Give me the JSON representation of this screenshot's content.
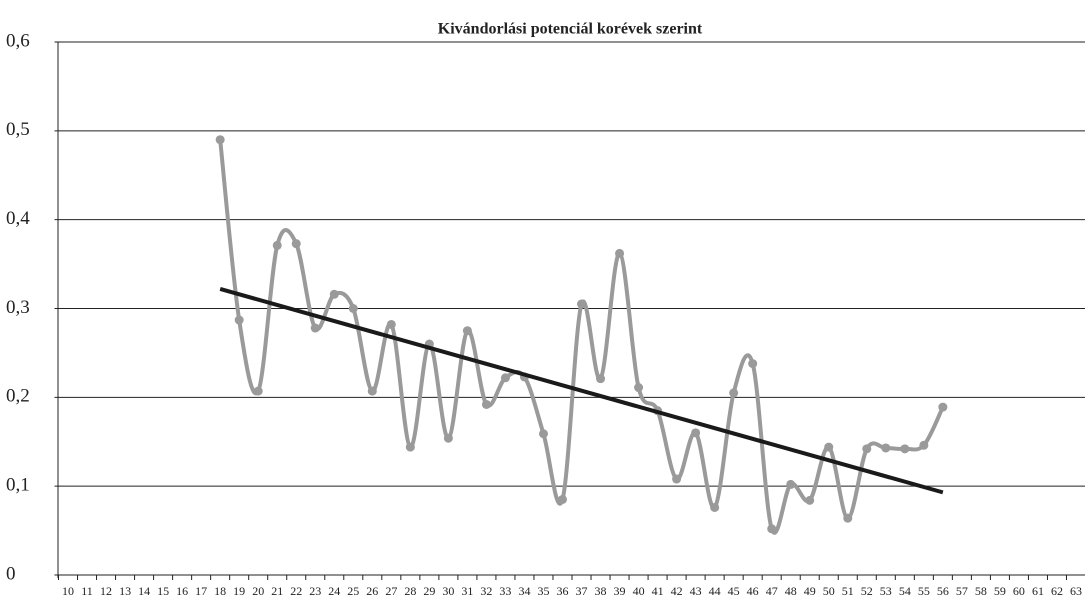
{
  "chart_data": {
    "type": "line",
    "title": "Kivándorlási potenciál korévek szerint",
    "xlim": [
      9.5,
      63.5
    ],
    "xticks": [
      10,
      11,
      12,
      13,
      14,
      15,
      16,
      17,
      18,
      19,
      20,
      21,
      22,
      23,
      24,
      25,
      26,
      27,
      28,
      29,
      30,
      31,
      32,
      33,
      34,
      35,
      36,
      37,
      38,
      39,
      40,
      41,
      42,
      43,
      44,
      45,
      46,
      47,
      48,
      49,
      50,
      51,
      52,
      53,
      54,
      55,
      56,
      57,
      58,
      59,
      60,
      61,
      62,
      63
    ],
    "ylim": [
      0,
      0.6
    ],
    "yticks": [
      0,
      {
        "value": 0.1,
        "label": "0,1"
      },
      {
        "value": 0.2,
        "label": "0,2"
      },
      {
        "value": 0.3,
        "label": "0,3"
      },
      {
        "value": 0.4,
        "label": "0,4"
      },
      {
        "value": 0.5,
        "label": "0,5"
      },
      {
        "value": 0.6,
        "label": "0,6"
      }
    ],
    "grid": true,
    "series": [
      {
        "color": "#9a9a9a",
        "x": [
          18,
          19,
          20,
          21,
          22,
          23,
          24,
          25,
          26,
          27,
          28,
          29,
          30,
          31,
          32,
          33,
          34,
          35,
          36,
          37,
          38,
          39,
          40,
          41,
          42,
          43,
          44,
          45,
          46,
          47,
          48,
          49,
          50,
          51,
          52,
          53,
          54,
          55,
          56
        ],
        "values": [
          0.49,
          0.287,
          0.207,
          0.371,
          0.373,
          0.278,
          0.316,
          0.3,
          0.207,
          0.282,
          0.144,
          0.26,
          0.154,
          0.275,
          0.192,
          0.222,
          0.223,
          0.159,
          0.085,
          0.305,
          0.221,
          0.362,
          0.211,
          0.185,
          0.108,
          0.16,
          0.076,
          0.205,
          0.238,
          0.052,
          0.102,
          0.084,
          0.144,
          0.064,
          0.142,
          0.143,
          0.142,
          0.146,
          0.189
        ]
      }
    ],
    "trendline": {
      "color": "#1a1a1a",
      "x": [
        18,
        56
      ],
      "values": [
        0.322,
        0.093
      ]
    }
  }
}
